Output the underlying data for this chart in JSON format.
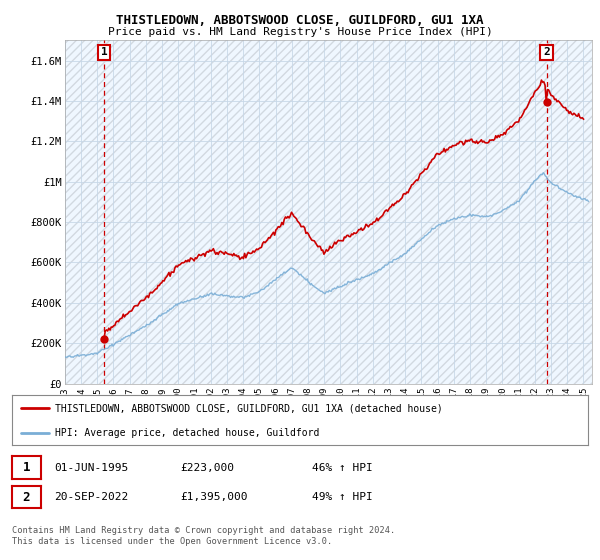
{
  "title": "THISTLEDOWN, ABBOTSWOOD CLOSE, GUILDFORD, GU1 1XA",
  "subtitle": "Price paid vs. HM Land Registry's House Price Index (HPI)",
  "ylim": [
    0,
    1700000
  ],
  "yticks": [
    0,
    200000,
    400000,
    600000,
    800000,
    1000000,
    1200000,
    1400000,
    1600000
  ],
  "ytick_labels": [
    "£0",
    "£200K",
    "£400K",
    "£600K",
    "£800K",
    "£1M",
    "£1.2M",
    "£1.4M",
    "£1.6M"
  ],
  "xlim_start": 1993.0,
  "xlim_end": 2025.5,
  "xticks": [
    1993,
    1994,
    1995,
    1996,
    1997,
    1998,
    1999,
    2000,
    2001,
    2002,
    2003,
    2004,
    2005,
    2006,
    2007,
    2008,
    2009,
    2010,
    2011,
    2012,
    2013,
    2014,
    2015,
    2016,
    2017,
    2018,
    2019,
    2020,
    2021,
    2022,
    2023,
    2024,
    2025
  ],
  "property_color": "#cc0000",
  "hpi_color": "#7aaed6",
  "transaction1_x": 1995.42,
  "transaction1_y": 223000,
  "transaction2_x": 2022.72,
  "transaction2_y": 1395000,
  "legend_property": "THISTLEDOWN, ABBOTSWOOD CLOSE, GUILDFORD, GU1 1XA (detached house)",
  "legend_hpi": "HPI: Average price, detached house, Guildford",
  "footer": "Contains HM Land Registry data © Crown copyright and database right 2024.\nThis data is licensed under the Open Government Licence v3.0.",
  "grid_color": "#c8d8e8",
  "hatch_color": "#c8c8c8",
  "plot_bg": "#dce8f5"
}
